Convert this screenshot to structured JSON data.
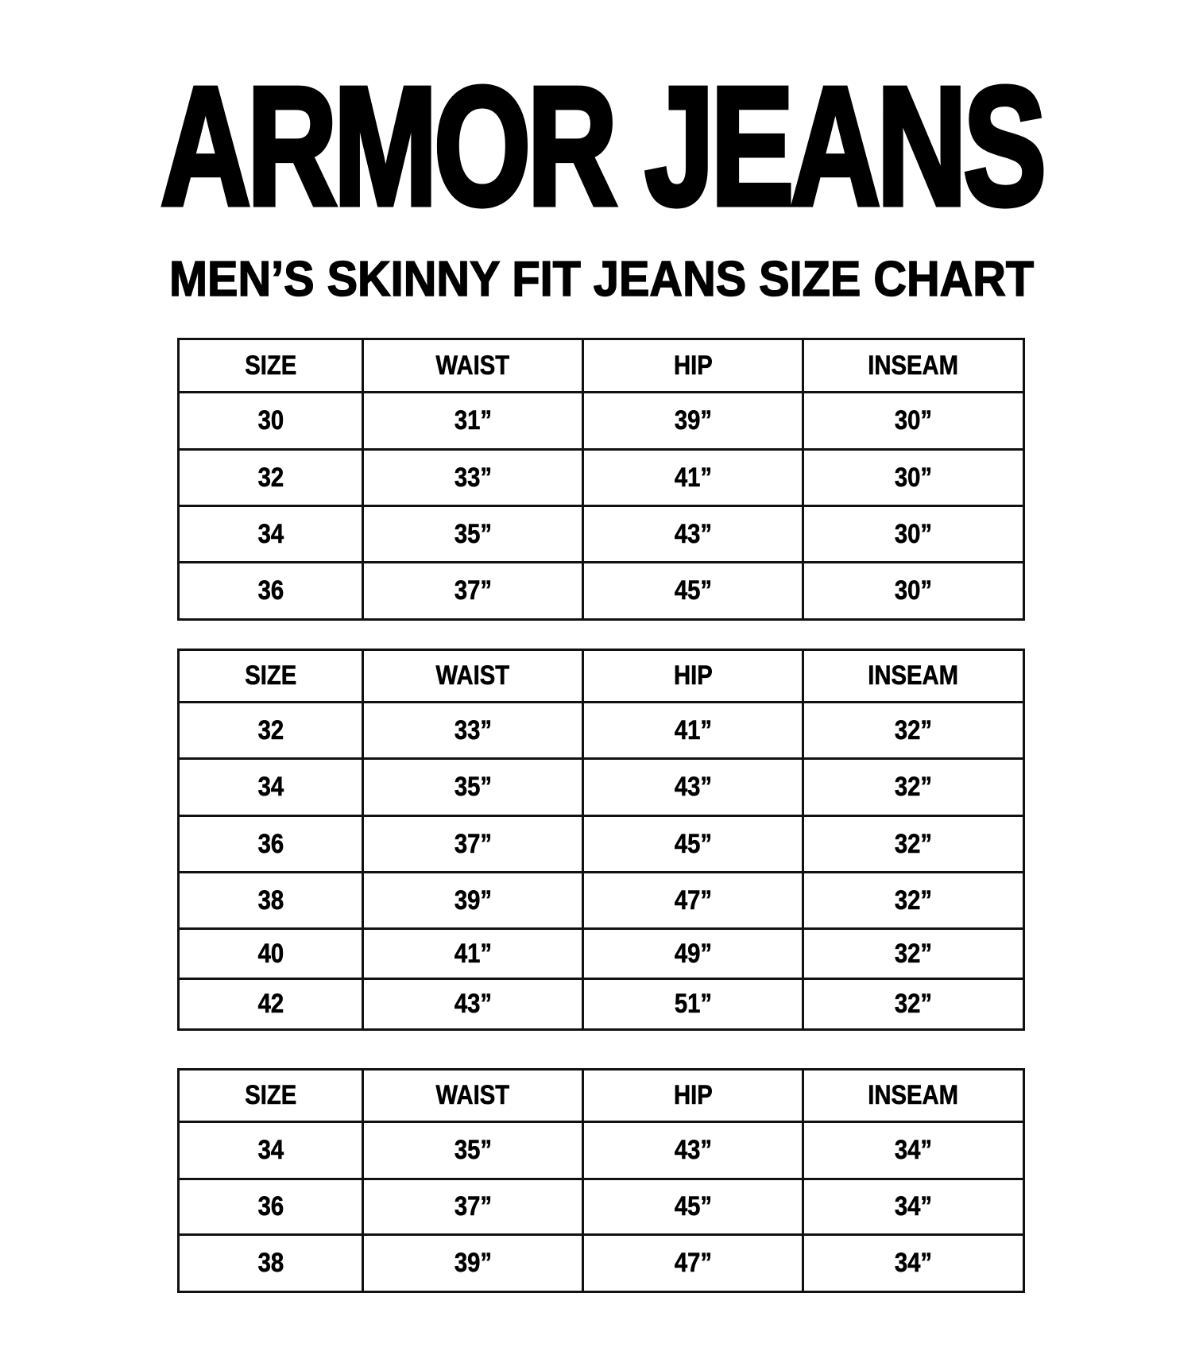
{
  "brand": "ARMOR JEANS",
  "title": "MEN’S SKINNY FIT JEANS SIZE CHART",
  "columns": [
    "SIZE",
    "WAIST",
    "HIP",
    "INSEAM"
  ],
  "tables": [
    {
      "rows": [
        [
          "30",
          "31”",
          "39”",
          "30”"
        ],
        [
          "32",
          "33”",
          "41”",
          "30”"
        ],
        [
          "34",
          "35”",
          "43”",
          "30”"
        ],
        [
          "36",
          "37”",
          "45”",
          "30”"
        ]
      ]
    },
    {
      "rows": [
        [
          "32",
          "33”",
          "41”",
          "32”"
        ],
        [
          "34",
          "35”",
          "43”",
          "32”"
        ],
        [
          "36",
          "37”",
          "45”",
          "32”"
        ],
        [
          "38",
          "39”",
          "47”",
          "32”"
        ],
        [
          "40",
          "41”",
          "49”",
          "32”"
        ],
        [
          "42",
          "43”",
          "51”",
          "32”"
        ]
      ]
    },
    {
      "rows": [
        [
          "34",
          "35”",
          "43”",
          "34”"
        ],
        [
          "36",
          "37”",
          "45”",
          "34”"
        ],
        [
          "38",
          "39”",
          "47”",
          "34”"
        ]
      ]
    }
  ]
}
